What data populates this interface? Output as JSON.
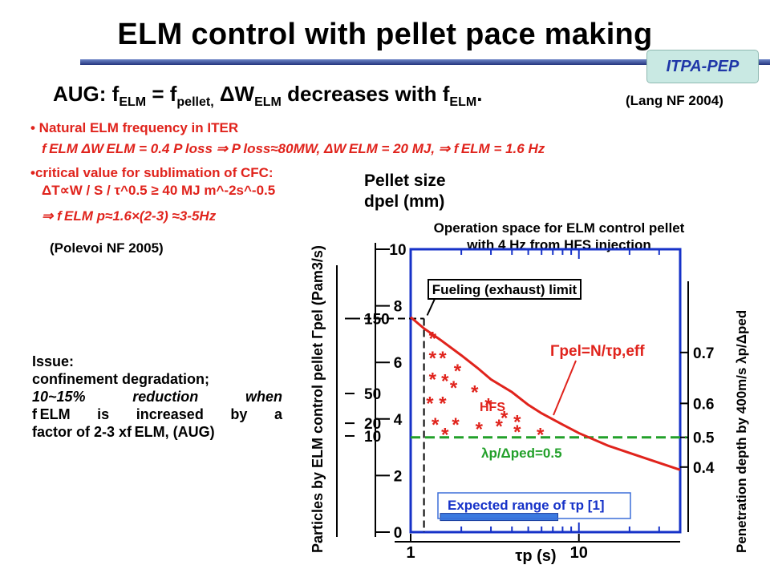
{
  "slide": {
    "title": "ELM control with pellet pace making",
    "badge": "ITPA-PEP",
    "subtitle": {
      "a": "AUG: f",
      "a_sub": "ELM",
      "b": " = f",
      "b_sub": "pellet,",
      "c": "  ΔW",
      "c_sub": "ELM",
      "d": " decreases with f",
      "d_sub": "ELM",
      "e": "."
    },
    "cite_lang": "(Lang NF 2004)",
    "bullet1": "• Natural ELM frequency in ITER",
    "bullet1_line": "f ELM ΔW ELM = 0.4 P loss  ⇒ P loss≈80MW, ΔW ELM = 20 MJ,  ⇒ f ELM = 1.6 Hz",
    "bullet2": "•critical value for sublimation of CFC:",
    "bullet2_line": "ΔT∝W / S / τ^0.5 ≥ 40 MJ m^-2s^-0.5",
    "bullet2_result": "⇒ f ELM p≈1.6×(2-3) ≈3-5Hz",
    "cite_polevoi": "(Polevoi NF 2005)",
    "issue": {
      "line1": "Issue:",
      "line2": "confinement degradation;",
      "line3": "10~15%  reduction  when",
      "line4": "f ELM is increased by a",
      "line5": "factor of 2-3 xf ELM, (AUG)"
    }
  },
  "chart_data": {
    "type": "line",
    "title": "Operation space for ELM control pellet with 4 Hz from HFS injection",
    "title_line1": "Operation space for ELM control pellet",
    "title_line2": "with 4 Hz from HFS injection",
    "xlabel": "τp (s)",
    "x_scale": "log",
    "xlim": [
      1,
      40
    ],
    "x_ticks": [
      1,
      10
    ],
    "y_left_label": "Particles by ELM control pellet  Γpel (Pam3/s)",
    "y_left_ticks": [
      "150",
      "50",
      "20",
      "10"
    ],
    "y_left_tick_positions_mm": [
      7.55,
      4.9,
      3.85,
      3.4
    ],
    "y_size_label_1": "Pellet size",
    "y_size_label_2": "dpel (mm)",
    "y_size_ticks": [
      "10",
      "8",
      "6",
      "4",
      "2",
      "0"
    ],
    "ylim_mm": [
      0,
      10
    ],
    "y_right_label": "Penetration depth by 400m/s   λp/Δped",
    "y_right_ticks": [
      "0.7",
      "0.6",
      "0.5",
      "0.4"
    ],
    "y_right_tick_positions_mm": [
      6.35,
      4.55,
      3.35,
      2.3
    ],
    "curve": {
      "label": "Γpel=N/τp,eff",
      "x": [
        1.0,
        1.2,
        1.5,
        2.0,
        2.5,
        3.0,
        4.0,
        5.0,
        6.0,
        8.0,
        10.0,
        15.0,
        20.0,
        30.0,
        40.0
      ],
      "y": [
        7.6,
        7.2,
        6.8,
        6.25,
        5.8,
        5.4,
        4.95,
        4.5,
        4.2,
        3.8,
        3.5,
        3.05,
        2.8,
        2.45,
        2.2
      ]
    },
    "fueling_limit_label": "Fueling (exhaust) limit",
    "fueling_limit_y_mm": 7.55,
    "fueling_limit_x": 1.2,
    "penetration_line_label": "λp/Δped=0.5",
    "penetration_line_y_mm": 3.35,
    "region_label": "HFS",
    "hfs_points": [
      {
        "x": 1.35,
        "y": 6.9
      },
      {
        "x": 1.35,
        "y": 6.2
      },
      {
        "x": 1.55,
        "y": 6.2
      },
      {
        "x": 1.35,
        "y": 5.45
      },
      {
        "x": 1.6,
        "y": 5.4
      },
      {
        "x": 1.9,
        "y": 5.75
      },
      {
        "x": 1.8,
        "y": 5.15
      },
      {
        "x": 1.3,
        "y": 4.6
      },
      {
        "x": 1.55,
        "y": 4.6
      },
      {
        "x": 2.4,
        "y": 5.0
      },
      {
        "x": 2.9,
        "y": 4.55
      },
      {
        "x": 3.6,
        "y": 4.1
      },
      {
        "x": 4.3,
        "y": 3.95
      },
      {
        "x": 1.4,
        "y": 3.85
      },
      {
        "x": 1.85,
        "y": 3.85
      },
      {
        "x": 2.55,
        "y": 3.7
      },
      {
        "x": 3.35,
        "y": 3.8
      },
      {
        "x": 4.3,
        "y": 3.6
      },
      {
        "x": 1.6,
        "y": 3.5
      },
      {
        "x": 5.9,
        "y": 3.5
      }
    ],
    "expected_range": {
      "label": "Expected range of τp [1]",
      "x": [
        1.5,
        7.5
      ],
      "y_mm": 0.55
    },
    "colors": {
      "frame": "#1632c8",
      "curve": "#e0231c",
      "penetration": "#22a02a",
      "range": "#3b7ae0",
      "text_blue": "#1632c8"
    }
  }
}
